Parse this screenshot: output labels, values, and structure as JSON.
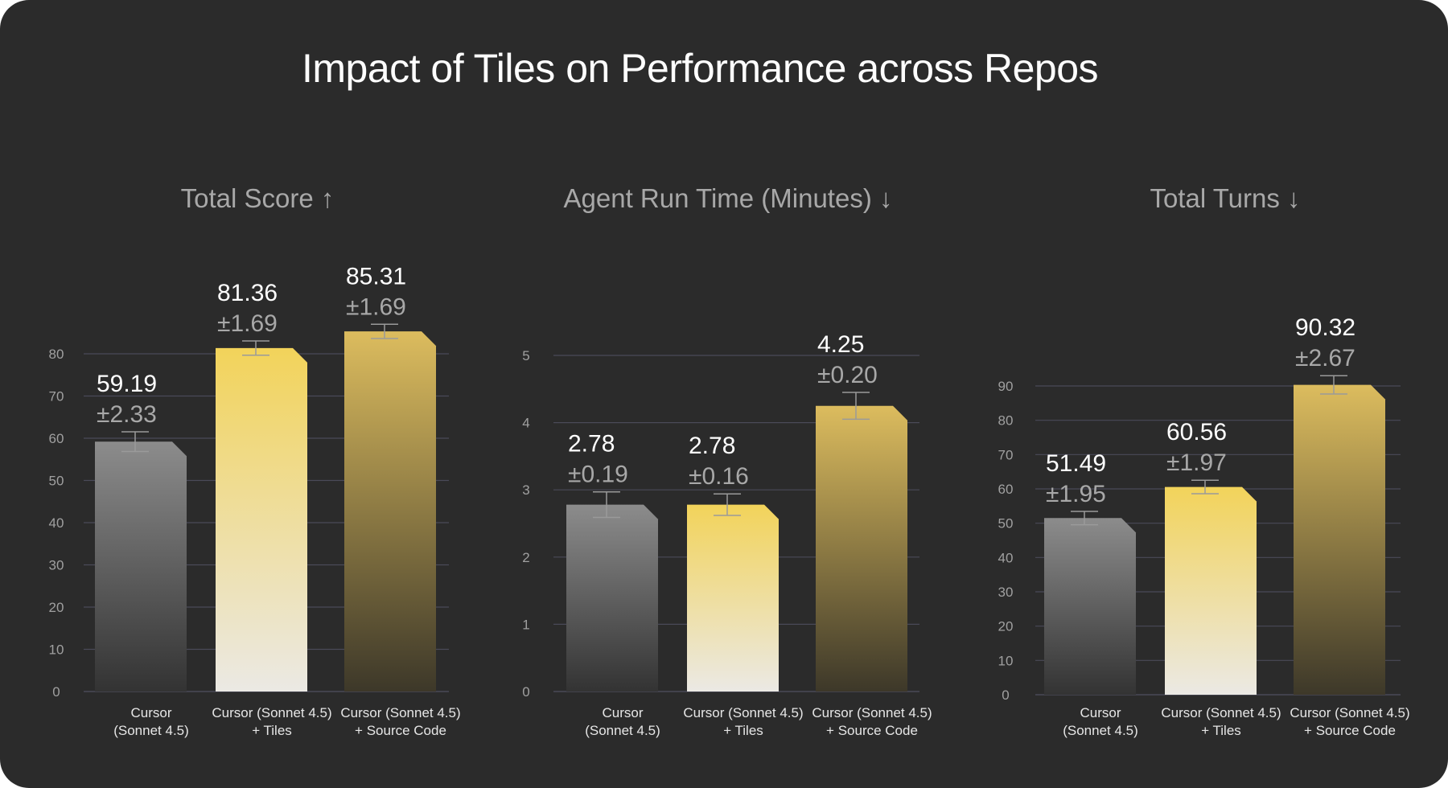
{
  "title": "Impact of Tiles on Performance across Repos",
  "colors": {
    "background": "#2b2b2b",
    "grid": "#4a4a58",
    "tick_text": "#a0a0a0",
    "value_text": "#ffffff",
    "error_text": "#a8a8a8",
    "gray_top": "#8c8c8c",
    "gray_bottom": "#333333",
    "yellow_top": "#f2d35a",
    "yellow_bottom": "#ebe9e4",
    "olive_top": "#dcbc5e",
    "olive_bottom": "#3d3829"
  },
  "chart_data": [
    {
      "type": "bar",
      "title": "Total Score ↑",
      "categories": [
        "Cursor\n(Sonnet 4.5)",
        "Cursor (Sonnet 4.5)\n+ Tiles",
        "Cursor (Sonnet 4.5)\n+ Source Code"
      ],
      "values": [
        59.19,
        81.36,
        85.31
      ],
      "errors": [
        2.33,
        1.69,
        1.69
      ],
      "value_labels": [
        "59.19",
        "81.36",
        "85.31"
      ],
      "error_labels": [
        "±2.33",
        "±1.69",
        "±1.69"
      ],
      "yticks": [
        0,
        10,
        20,
        30,
        40,
        50,
        60,
        70,
        80
      ],
      "ylim": [
        0,
        90
      ],
      "grid": true,
      "xlabel": "",
      "ylabel": ""
    },
    {
      "type": "bar",
      "title": "Agent Run Time (Minutes) ↓",
      "categories": [
        "Cursor\n(Sonnet 4.5)",
        "Cursor (Sonnet 4.5)\n+ Tiles",
        "Cursor (Sonnet 4.5)\n+ Source Code"
      ],
      "values": [
        2.78,
        2.78,
        4.25
      ],
      "errors": [
        0.19,
        0.16,
        0.2
      ],
      "value_labels": [
        "2.78",
        "2.78",
        "4.25"
      ],
      "error_labels": [
        "±0.19",
        "±0.16",
        "±0.20"
      ],
      "yticks": [
        0,
        1,
        2,
        3,
        4,
        5
      ],
      "ylim": [
        0,
        5
      ],
      "grid": true,
      "xlabel": "",
      "ylabel": ""
    },
    {
      "type": "bar",
      "title": "Total Turns ↓",
      "categories": [
        "Cursor\n(Sonnet 4.5)",
        "Cursor (Sonnet 4.5)\n+ Tiles",
        "Cursor (Sonnet 4.5)\n+ Source Code"
      ],
      "values": [
        51.49,
        60.56,
        90.32
      ],
      "errors": [
        1.95,
        1.97,
        2.67
      ],
      "value_labels": [
        "51.49",
        "60.56",
        "90.32"
      ],
      "error_labels": [
        "±1.95",
        "±1.97",
        "±2.67"
      ],
      "yticks": [
        0,
        10,
        20,
        30,
        40,
        50,
        60,
        70,
        80,
        90
      ],
      "ylim": [
        0,
        90
      ],
      "grid": true,
      "xlabel": "",
      "ylabel": ""
    }
  ]
}
